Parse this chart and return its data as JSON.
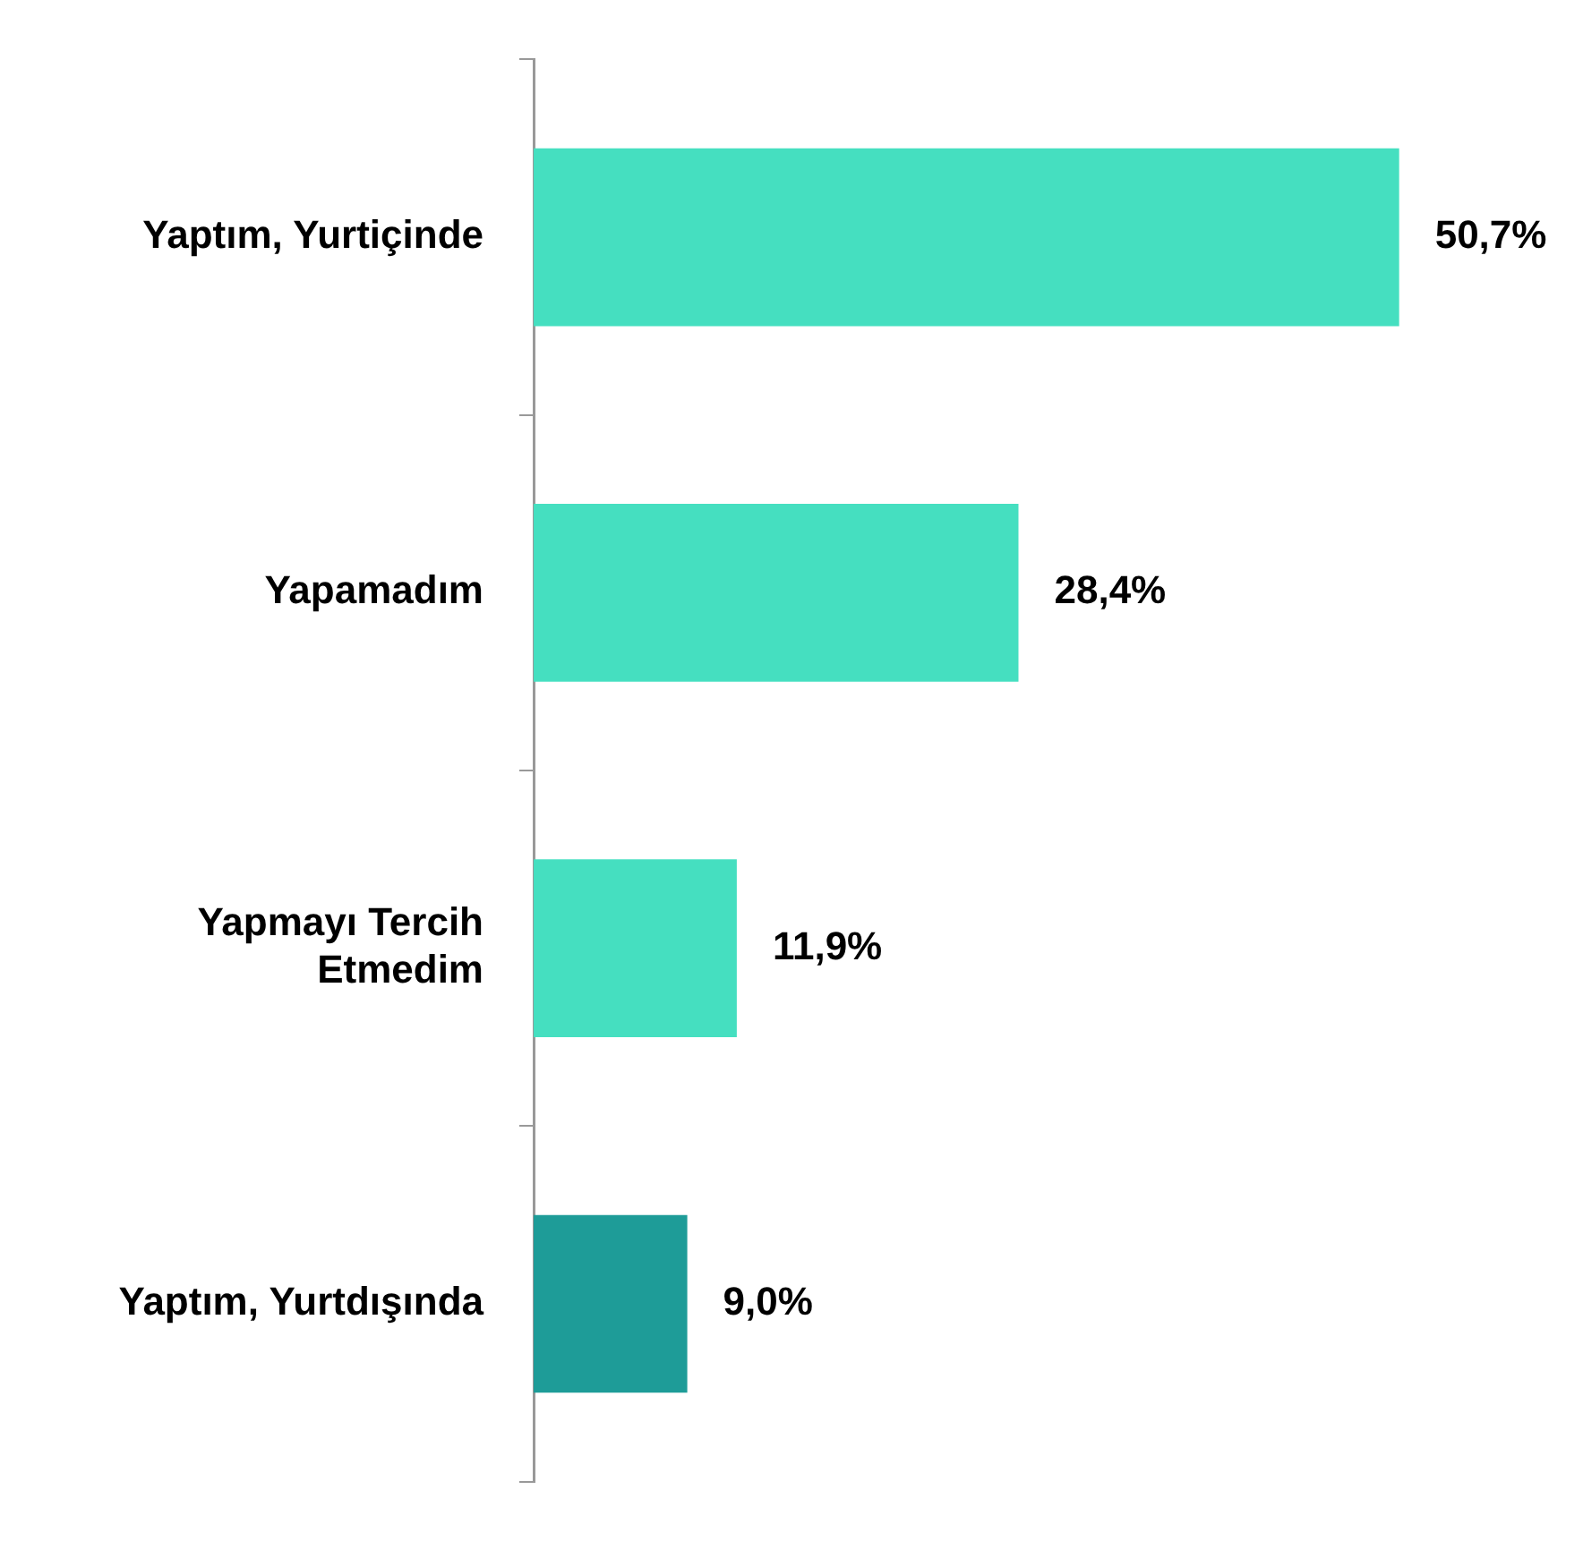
{
  "chart_data": {
    "type": "bar",
    "orientation": "horizontal",
    "categories": [
      "Yaptım, Yurtiçinde",
      "Yapamadım",
      "Yapmayı Tercih Etmedim",
      "Yaptım, Yurtdışında"
    ],
    "values": [
      50.7,
      28.4,
      11.9,
      9.0
    ],
    "value_labels": [
      "50,7%",
      "28,4%",
      "11,9%",
      "9,0%"
    ],
    "colors": [
      "#45dfc0",
      "#45dfc0",
      "#45dfc0",
      "#1e9c98"
    ],
    "grid": false,
    "legend": false
  }
}
